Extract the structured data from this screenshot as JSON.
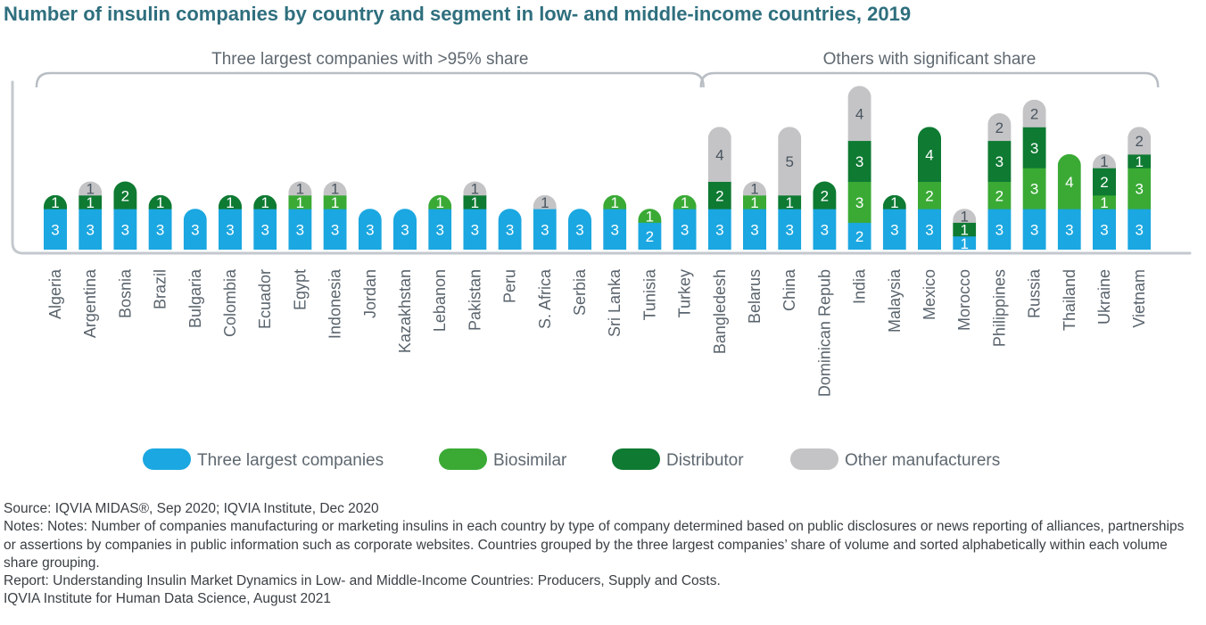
{
  "title": "Number of insulin companies by country and segment in low- and middle-income countries, 2019",
  "groups": [
    {
      "label": "Three largest companies with >95% share",
      "start": 0,
      "end": 18
    },
    {
      "label": "Others with significant share",
      "start": 19,
      "end": 31
    }
  ],
  "colors": {
    "three_largest": "#1ba7e1",
    "biosimilar": "#3aaa35",
    "distributor": "#0e7a32",
    "other": "#c4c4c6"
  },
  "chart_data": {
    "type": "bar",
    "stacked": true,
    "categories": [
      "Algeria",
      "Argentina",
      "Bosnia",
      "Brazil",
      "Bulgaria",
      "Colombia",
      "Ecuador",
      "Egypt",
      "Indonesia",
      "Jordan",
      "Kazakhstan",
      "Lebanon",
      "Pakistan",
      "Peru",
      "S. Africa",
      "Serbia",
      "Sri Lanka",
      "Tunisia",
      "Turkey",
      "Bangledesh",
      "Belarus",
      "China",
      "Dominican Repub",
      "India",
      "Malaysia",
      "Mexico",
      "Morocco",
      "Philippines",
      "Russia",
      "Thailand",
      "Ukraine",
      "Vietnam"
    ],
    "series": [
      {
        "name": "Three largest companies",
        "color": "#1ba7e1",
        "values": [
          3,
          3,
          3,
          3,
          3,
          3,
          3,
          3,
          3,
          3,
          3,
          3,
          3,
          3,
          3,
          3,
          3,
          2,
          3,
          3,
          3,
          3,
          3,
          2,
          3,
          3,
          1,
          3,
          3,
          3,
          3,
          3
        ]
      },
      {
        "name": "Biosimilar",
        "color": "#3aaa35",
        "values": [
          0,
          0,
          0,
          0,
          0,
          0,
          0,
          1,
          1,
          0,
          0,
          1,
          0,
          0,
          0,
          0,
          1,
          1,
          1,
          0,
          1,
          0,
          0,
          3,
          0,
          2,
          0,
          2,
          3,
          4,
          1,
          3
        ]
      },
      {
        "name": "Distributor",
        "color": "#0e7a32",
        "values": [
          1,
          1,
          2,
          1,
          0,
          1,
          1,
          0,
          0,
          0,
          0,
          0,
          1,
          0,
          0,
          0,
          0,
          0,
          0,
          2,
          0,
          1,
          2,
          3,
          1,
          4,
          1,
          3,
          3,
          0,
          2,
          1
        ]
      },
      {
        "name": "Other manufacturers",
        "color": "#c4c4c6",
        "values": [
          0,
          1,
          0,
          0,
          0,
          0,
          0,
          1,
          1,
          0,
          0,
          0,
          1,
          0,
          1,
          0,
          0,
          0,
          0,
          4,
          1,
          5,
          0,
          4,
          0,
          0,
          1,
          2,
          2,
          0,
          1,
          2
        ]
      }
    ],
    "legend_position": "bottom",
    "grid": false
  },
  "notes": [
    "Source: IQVIA MIDAS®, Sep 2020; IQVIA Institute, Dec 2020",
    "Notes: Notes: Number of companies manufacturing or marketing insulins in each country by type of company determined based on public disclosures or news reporting of alliances, partnerships or assertions by companies in public information such as corporate websites. Countries grouped by the three largest companies’ share of volume and sorted alphabetically within each volume share grouping.",
    "Report: Understanding Insulin Market Dynamics in Low- and Middle-Income Countries: Producers, Supply and Costs.",
    "IQVIA Institute for Human Data Science, August 2021"
  ]
}
